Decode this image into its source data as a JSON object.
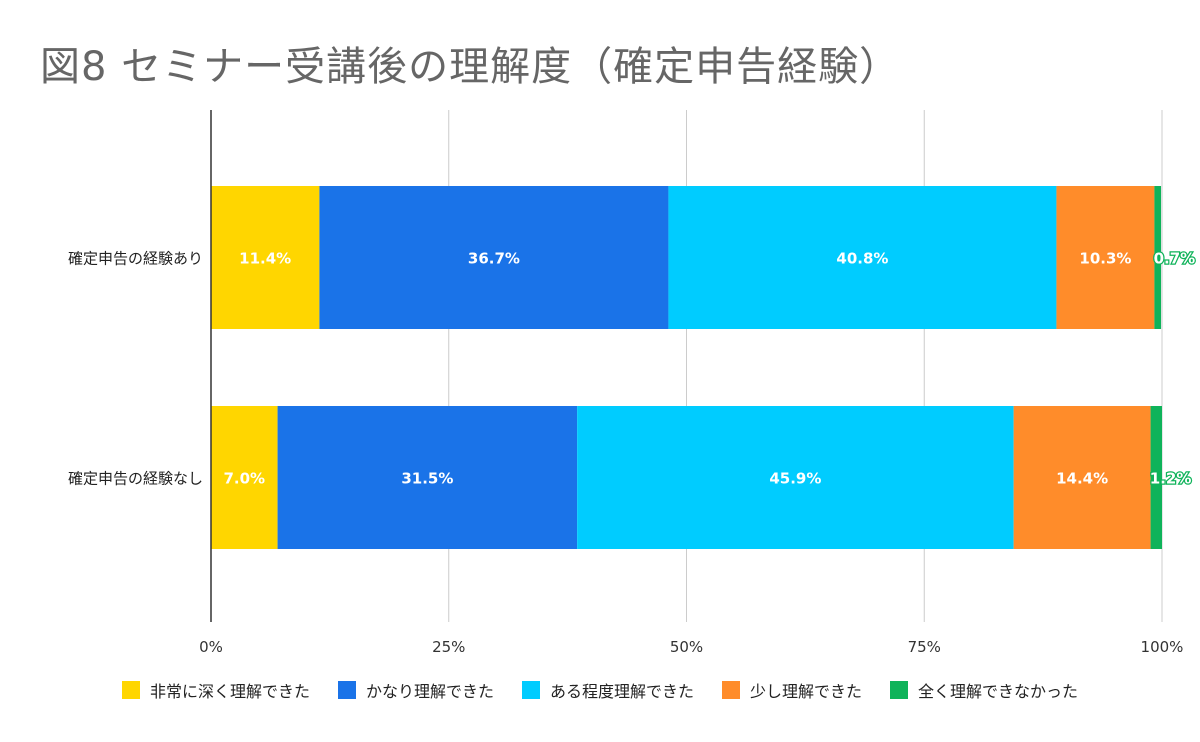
{
  "chart_data": {
    "type": "bar",
    "orientation": "horizontal",
    "stacked": "percent",
    "title": "図8  セミナー受講後の理解度（確定申告経験）",
    "categories": [
      "確定申告の経験あり",
      "確定申告の経験なし"
    ],
    "series": [
      {
        "name": "非常に深く理解できた",
        "color": "#FFD600",
        "values": [
          11.4,
          7.0
        ],
        "labels": [
          "11.4%",
          "7.0%"
        ]
      },
      {
        "name": "かなり理解できた",
        "color": "#1A73E8",
        "values": [
          36.7,
          31.5
        ],
        "labels": [
          "36.7%",
          "31.5%"
        ]
      },
      {
        "name": "ある程度理解できた",
        "color": "#00CCFF",
        "values": [
          40.8,
          45.9
        ],
        "labels": [
          "40.8%",
          "45.9%"
        ]
      },
      {
        "name": "少し理解できた",
        "color": "#FF8C2A",
        "values": [
          10.3,
          14.4
        ],
        "labels": [
          "10.3%",
          "14.4%"
        ]
      },
      {
        "name": "全く理解できなかった",
        "color": "#0FB35A",
        "values": [
          0.7,
          1.2
        ],
        "labels": [
          "0.7%",
          "1.2%"
        ]
      }
    ],
    "xaxis": {
      "range": [
        0,
        100
      ],
      "ticks": [
        0,
        25,
        50,
        75,
        100
      ],
      "tick_labels": [
        "0%",
        "25%",
        "50%",
        "75%",
        "100%"
      ]
    },
    "grid": true,
    "legend_position": "bottom"
  }
}
